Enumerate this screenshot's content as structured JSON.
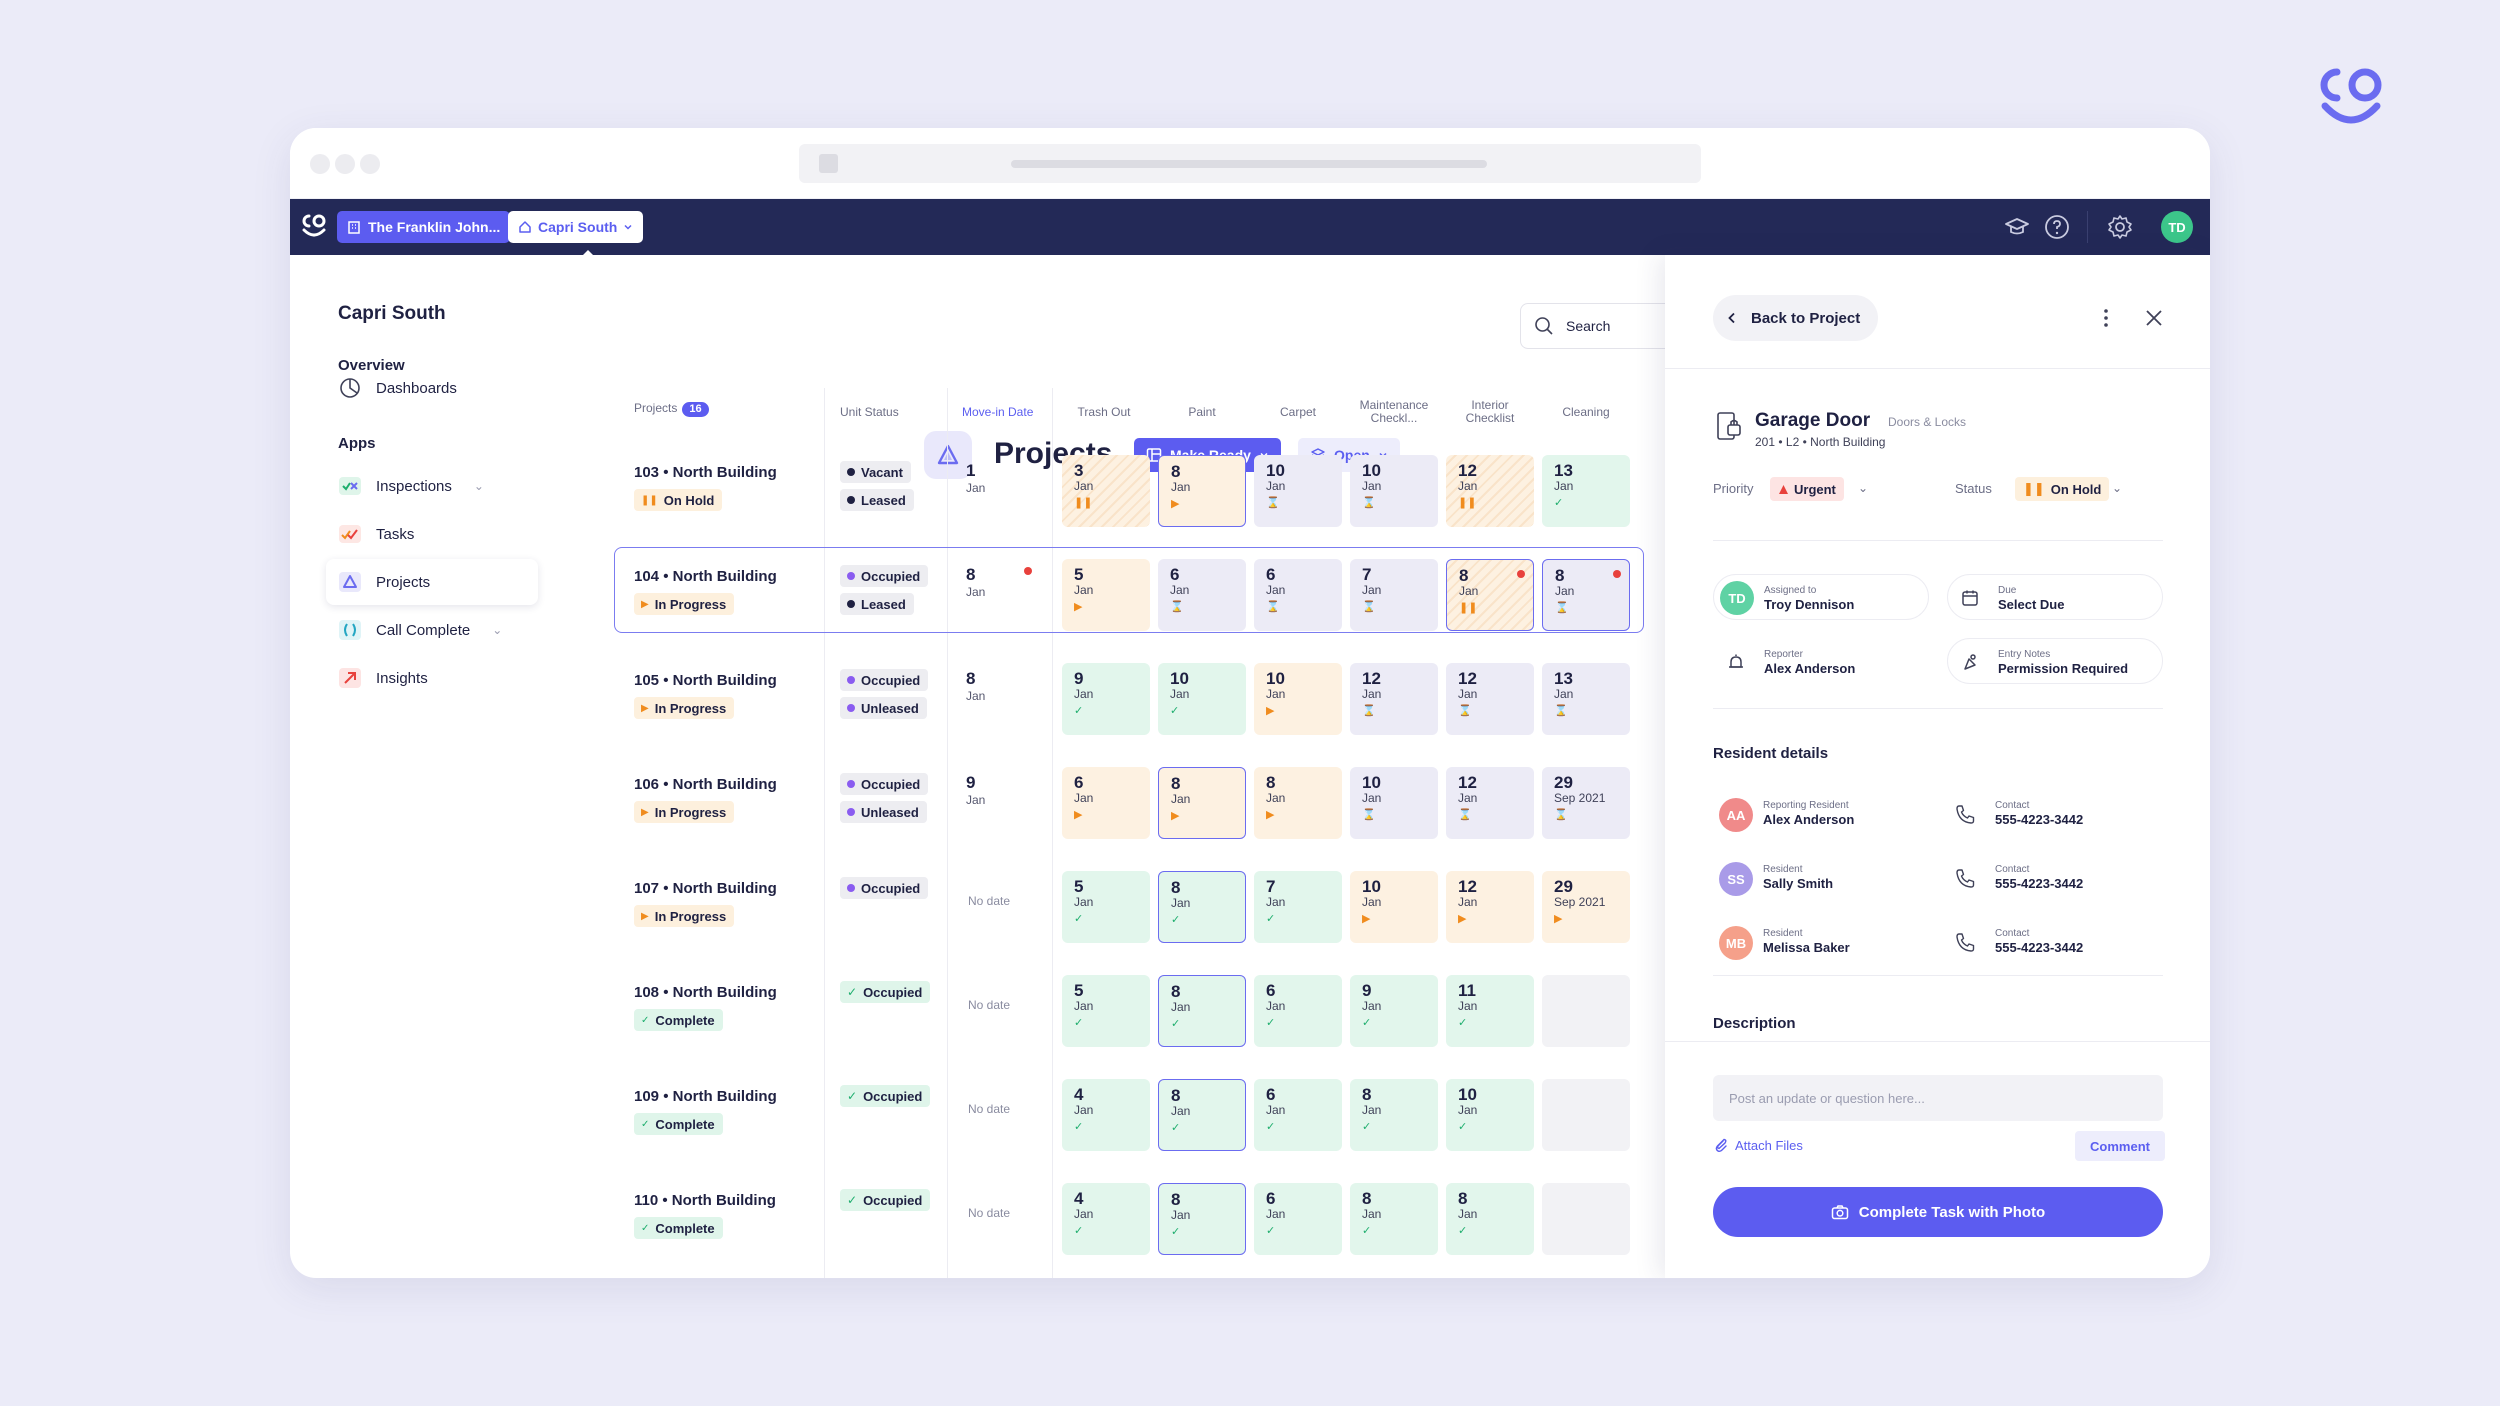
{
  "window": {
    "org_name": "The Franklin John...",
    "property_name": "Capri South",
    "user_initials": "TD"
  },
  "sidebar": {
    "title": "Capri South",
    "overview_heading": "Overview",
    "apps_heading": "Apps",
    "items": [
      {
        "label": "Dashboards",
        "icon": "pie-chart-icon"
      },
      {
        "label": "Inspections",
        "icon": "inspections-icon"
      },
      {
        "label": "Tasks",
        "icon": "tasks-icon"
      },
      {
        "label": "Projects",
        "icon": "projects-icon"
      },
      {
        "label": "Call Complete",
        "icon": "call-complete-icon"
      },
      {
        "label": "Insights",
        "icon": "insights-icon"
      }
    ]
  },
  "main": {
    "title": "Projects",
    "make_ready_label": "Make Ready",
    "open_label": "Open",
    "search_placeholder": "Search",
    "columns": {
      "projects": "Projects",
      "projects_count": "16",
      "unit_status": "Unit Status",
      "move_in": "Move-in Date",
      "trash_out": "Trash Out",
      "paint": "Paint",
      "carpet": "Carpet",
      "maint_1": "Maintenance",
      "maint_2": "Checkl...",
      "interior_1": "Interior",
      "interior_2": "Checklist",
      "cleaning": "Cleaning"
    },
    "no_date_label": "No date",
    "rows": [
      {
        "name": "103 • North Building",
        "status": "On Hold",
        "status_kind": "hold",
        "units": [
          {
            "label": "Vacant",
            "dot": "dark"
          },
          {
            "label": "Leased",
            "dot": "dark"
          }
        ],
        "movein": {
          "day": "1",
          "mon": "Jan",
          "flag": false
        },
        "cells": [
          {
            "d": "3",
            "m": "Jan",
            "k": "orange-h",
            "i": "pause"
          },
          {
            "d": "8",
            "m": "Jan",
            "k": "orange",
            "i": "play",
            "sel": true
          },
          {
            "d": "10",
            "m": "Jan",
            "k": "purple",
            "i": "hour"
          },
          {
            "d": "10",
            "m": "Jan",
            "k": "purple",
            "i": "hour"
          },
          {
            "d": "12",
            "m": "Jan",
            "k": "orange-h",
            "i": "pause"
          },
          {
            "d": "13",
            "m": "Jan",
            "k": "green",
            "i": "check"
          }
        ]
      },
      {
        "name": "104 • North Building",
        "status": "In Progress",
        "status_kind": "prog",
        "units": [
          {
            "label": "Occupied",
            "dot": "purple"
          },
          {
            "label": "Leased",
            "dot": "dark"
          }
        ],
        "movein": {
          "day": "8",
          "mon": "Jan",
          "flag": true
        },
        "cells": [
          {
            "d": "5",
            "m": "Jan",
            "k": "orange",
            "i": "play"
          },
          {
            "d": "6",
            "m": "Jan",
            "k": "purple",
            "i": "hour"
          },
          {
            "d": "6",
            "m": "Jan",
            "k": "purple",
            "i": "hour"
          },
          {
            "d": "7",
            "m": "Jan",
            "k": "purple",
            "i": "hour"
          },
          {
            "d": "8",
            "m": "Jan",
            "k": "orange-h",
            "i": "pause",
            "sel": true,
            "flag": true
          },
          {
            "d": "8",
            "m": "Jan",
            "k": "purple",
            "i": "hour",
            "sel": true,
            "flag": true
          }
        ]
      },
      {
        "name": "105 • North Building",
        "status": "In Progress",
        "status_kind": "prog",
        "units": [
          {
            "label": "Occupied",
            "dot": "purple"
          },
          {
            "label": "Unleased",
            "dot": "purple"
          }
        ],
        "movein": {
          "day": "8",
          "mon": "Jan",
          "flag": false
        },
        "cells": [
          {
            "d": "9",
            "m": "Jan",
            "k": "green",
            "i": "check"
          },
          {
            "d": "10",
            "m": "Jan",
            "k": "green",
            "i": "check"
          },
          {
            "d": "10",
            "m": "Jan",
            "k": "orange",
            "i": "play"
          },
          {
            "d": "12",
            "m": "Jan",
            "k": "purple",
            "i": "hour"
          },
          {
            "d": "12",
            "m": "Jan",
            "k": "purple",
            "i": "hour"
          },
          {
            "d": "13",
            "m": "Jan",
            "k": "purple",
            "i": "hour"
          }
        ]
      },
      {
        "name": "106 • North Building",
        "status": "In Progress",
        "status_kind": "prog",
        "units": [
          {
            "label": "Occupied",
            "dot": "purple"
          },
          {
            "label": "Unleased",
            "dot": "purple"
          }
        ],
        "movein": {
          "day": "9",
          "mon": "Jan",
          "flag": false
        },
        "cells": [
          {
            "d": "6",
            "m": "Jan",
            "k": "orange",
            "i": "play"
          },
          {
            "d": "8",
            "m": "Jan",
            "k": "orange",
            "i": "play",
            "sel": true
          },
          {
            "d": "8",
            "m": "Jan",
            "k": "orange",
            "i": "play"
          },
          {
            "d": "10",
            "m": "Jan",
            "k": "purple",
            "i": "hour"
          },
          {
            "d": "12",
            "m": "Jan",
            "k": "purple",
            "i": "hour"
          },
          {
            "d": "29",
            "m": "Sep 2021",
            "k": "purple",
            "i": "hour"
          }
        ]
      },
      {
        "name": "107 • North Building",
        "status": "In Progress",
        "status_kind": "prog",
        "units": [
          {
            "label": "Occupied",
            "dot": "purple"
          }
        ],
        "movein": null,
        "cells": [
          {
            "d": "5",
            "m": "Jan",
            "k": "green",
            "i": "check"
          },
          {
            "d": "8",
            "m": "Jan",
            "k": "green",
            "i": "check",
            "sel": true
          },
          {
            "d": "7",
            "m": "Jan",
            "k": "green",
            "i": "check"
          },
          {
            "d": "10",
            "m": "Jan",
            "k": "orange",
            "i": "play"
          },
          {
            "d": "12",
            "m": "Jan",
            "k": "orange",
            "i": "play"
          },
          {
            "d": "29",
            "m": "Sep 2021",
            "k": "orange",
            "i": "play"
          }
        ]
      },
      {
        "name": "108 • North Building",
        "status": "Complete",
        "status_kind": "comp",
        "units": [
          {
            "label": "Occupied",
            "dot": "check"
          }
        ],
        "movein": null,
        "cells": [
          {
            "d": "5",
            "m": "Jan",
            "k": "green",
            "i": "check"
          },
          {
            "d": "8",
            "m": "Jan",
            "k": "green",
            "i": "check",
            "sel": true
          },
          {
            "d": "6",
            "m": "Jan",
            "k": "green",
            "i": "check"
          },
          {
            "d": "9",
            "m": "Jan",
            "k": "green",
            "i": "check"
          },
          {
            "d": "11",
            "m": "Jan",
            "k": "green",
            "i": "check"
          },
          {
            "d": "",
            "m": "",
            "k": "empty",
            "i": ""
          }
        ]
      },
      {
        "name": "109 • North Building",
        "status": "Complete",
        "status_kind": "comp",
        "units": [
          {
            "label": "Occupied",
            "dot": "check"
          }
        ],
        "movein": null,
        "cells": [
          {
            "d": "4",
            "m": "Jan",
            "k": "green",
            "i": "check"
          },
          {
            "d": "8",
            "m": "Jan",
            "k": "green",
            "i": "check",
            "sel": true
          },
          {
            "d": "6",
            "m": "Jan",
            "k": "green",
            "i": "check"
          },
          {
            "d": "8",
            "m": "Jan",
            "k": "green",
            "i": "check"
          },
          {
            "d": "10",
            "m": "Jan",
            "k": "green",
            "i": "check"
          },
          {
            "d": "",
            "m": "",
            "k": "empty",
            "i": ""
          }
        ]
      },
      {
        "name": "110 • North Building",
        "status": "Complete",
        "status_kind": "comp",
        "units": [
          {
            "label": "Occupied",
            "dot": "check"
          }
        ],
        "movein": null,
        "cells": [
          {
            "d": "4",
            "m": "Jan",
            "k": "green",
            "i": "check"
          },
          {
            "d": "8",
            "m": "Jan",
            "k": "green",
            "i": "check",
            "sel": true
          },
          {
            "d": "6",
            "m": "Jan",
            "k": "green",
            "i": "check"
          },
          {
            "d": "8",
            "m": "Jan",
            "k": "green",
            "i": "check"
          },
          {
            "d": "8",
            "m": "Jan",
            "k": "green",
            "i": "check"
          },
          {
            "d": "",
            "m": "",
            "k": "empty",
            "i": ""
          }
        ]
      }
    ]
  },
  "panel": {
    "back_label": "Back to Project",
    "task_title": "Garage Door",
    "task_category": "Doors & Locks",
    "task_location": "201 • L2 • North Building",
    "priority_label": "Priority",
    "priority_value": "Urgent",
    "status_label": "Status",
    "status_value": "On Hold",
    "assigned_key": "Assigned to",
    "assigned_value": "Troy Dennison",
    "assigned_initials": "TD",
    "due_key": "Due",
    "due_value": "Select Due",
    "reporter_key": "Reporter",
    "reporter_value": "Alex Anderson",
    "entry_key": "Entry Notes",
    "entry_value": "Permission Required",
    "resident_heading": "Resident details",
    "residents": [
      {
        "initials": "AA",
        "role": "Reporting Resident",
        "name": "Alex Anderson",
        "contact_label": "Contact",
        "phone": "555-4223-3442",
        "color": "#f08a8a"
      },
      {
        "initials": "SS",
        "role": "Resident",
        "name": "Sally Smith",
        "contact_label": "Contact",
        "phone": "555-4223-3442",
        "color": "#a99be8"
      },
      {
        "initials": "MB",
        "role": "Resident",
        "name": "Melissa Baker",
        "contact_label": "Contact",
        "phone": "555-4223-3442",
        "color": "#f5a08a"
      }
    ],
    "description_heading": "Description",
    "compose_placeholder": "Post an update or question here...",
    "attach_label": "Attach Files",
    "comment_label": "Comment",
    "photo_button_label": "Complete Task with Photo"
  },
  "colors": {
    "brand": "#5c5cf0",
    "topbar": "#232957",
    "orange": "#f08c1e",
    "purple": "#6b4fd8",
    "green": "#1fae6e",
    "red": "#e8413c"
  }
}
